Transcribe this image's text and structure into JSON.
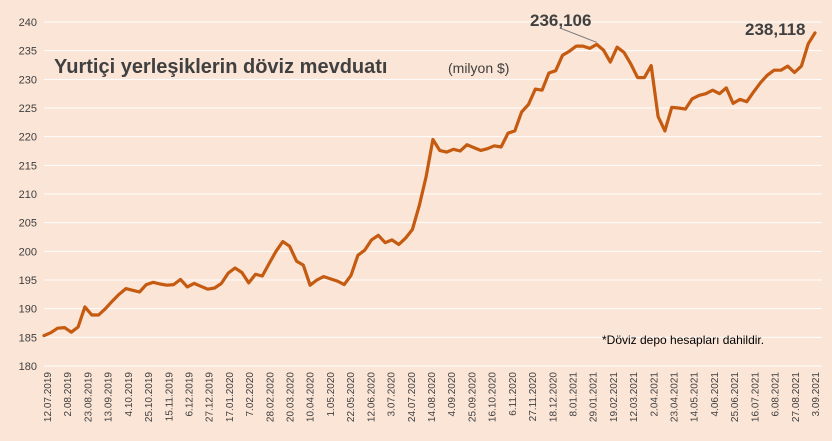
{
  "chart_data": {
    "type": "line",
    "title": "Yurtiçi yerleşiklerin döviz mevduatı",
    "title_unit": "(milyon $)",
    "note": "*Döviz depo hesapları dahildir.",
    "ylim": [
      180,
      240
    ],
    "yticks": [
      180,
      185,
      190,
      195,
      200,
      205,
      210,
      215,
      220,
      225,
      230,
      235,
      240
    ],
    "grid": true,
    "line_color": "#c55a11",
    "gridline_color": "#ffffff",
    "background": "#fbe5d6",
    "x_tick_labels": [
      "12.07.2019",
      "2.08.2019",
      "23.08.2019",
      "13.09.2019",
      "4.10.2019",
      "25.10.2019",
      "15.11.2019",
      "6.12.2019",
      "27.12.2019",
      "17.01.2020",
      "7.02.2020",
      "28.02.2020",
      "20.03.2020",
      "10.04.2020",
      "1.05.2020",
      "22.05.2020",
      "12.06.2020",
      "3.07.2020",
      "24.07.2020",
      "14.08.2020",
      "4.09.2020",
      "25.09.2020",
      "16.10.2020",
      "6.11.2020",
      "27.11.2020",
      "18.12.2020",
      "8.01.2021",
      "29.01.2021",
      "19.02.2021",
      "12.03.2021",
      "2.04.2021",
      "23.04.2021",
      "14.05.2021",
      "4.06.2021",
      "25.06.2021",
      "16.07.2021",
      "6.08.2021",
      "27.08.2021",
      "3.09.2021"
    ],
    "series": [
      {
        "values": [
          185.3,
          185.8,
          186.6,
          186.7,
          185.9,
          186.8,
          190.3,
          188.9,
          188.9,
          190.0,
          191.3,
          192.5,
          193.5,
          193.2,
          192.9,
          194.2,
          194.6,
          194.3,
          194.1,
          194.2,
          195.1,
          193.8,
          194.4,
          193.9,
          193.4,
          193.6,
          194.4,
          196.2,
          197.1,
          196.3,
          194.5,
          196.0,
          195.7,
          197.9,
          200.0,
          201.7,
          200.9,
          198.3,
          197.6,
          194.1,
          195.0,
          195.6,
          195.2,
          194.8,
          194.2,
          195.8,
          199.3,
          200.2,
          202.0,
          202.8,
          201.5,
          202.0,
          201.2,
          202.3,
          203.8,
          208.0,
          213.0,
          219.5,
          217.6,
          217.3,
          217.8,
          217.5,
          218.6,
          218.1,
          217.6,
          217.9,
          218.4,
          218.2,
          220.6,
          221.0,
          224.3,
          225.6,
          228.3,
          228.1,
          231.1,
          231.5,
          234.2,
          234.9,
          235.8,
          235.8,
          235.4,
          236.1,
          235.1,
          233.0,
          235.6,
          234.7,
          232.7,
          230.3,
          230.3,
          232.4,
          223.5,
          221.0,
          225.1,
          225.0,
          224.8,
          226.6,
          227.2,
          227.5,
          228.1,
          227.5,
          228.5,
          225.8,
          226.5,
          226.1,
          227.8,
          229.4,
          230.7,
          231.6,
          231.6,
          232.3,
          231.2,
          232.3,
          236.2,
          238.1
        ]
      }
    ],
    "annotations": [
      {
        "label": "236,106",
        "value": 236.106
      },
      {
        "label": "238,118",
        "value": 238.118
      }
    ]
  }
}
